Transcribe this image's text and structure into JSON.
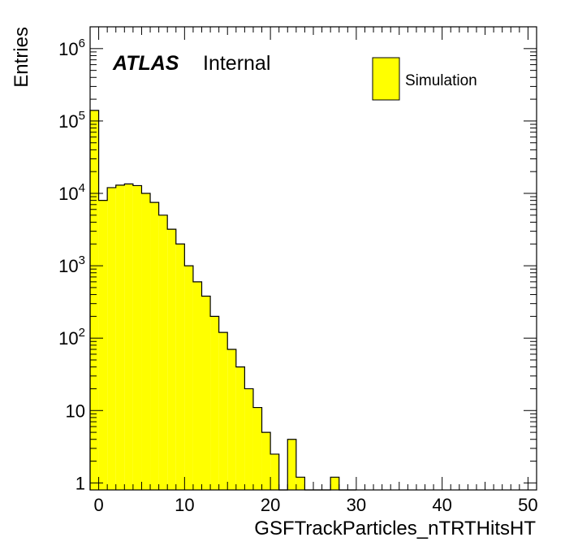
{
  "chart_data": {
    "type": "bar",
    "title": "",
    "xlabel": "GSFTrackParticles_nTRTHitsHT",
    "ylabel": "Entries",
    "xlim": [
      -1,
      51
    ],
    "ylim": [
      0.8,
      2000000
    ],
    "yscale": "log",
    "x_ticks": [
      0,
      10,
      20,
      30,
      40,
      50
    ],
    "y_ticks": [
      {
        "value": 1,
        "base": "1",
        "exp": ""
      },
      {
        "value": 10,
        "base": "10",
        "exp": ""
      },
      {
        "value": 100,
        "base": "10",
        "exp": "2"
      },
      {
        "value": 1000,
        "base": "10",
        "exp": "3"
      },
      {
        "value": 10000,
        "base": "10",
        "exp": "4"
      },
      {
        "value": 100000,
        "base": "10",
        "exp": "5"
      },
      {
        "value": 1000000,
        "base": "10",
        "exp": "6"
      }
    ],
    "bin_width": 1,
    "bin_low_edges": [
      -1,
      0,
      1,
      2,
      3,
      4,
      5,
      6,
      7,
      8,
      9,
      10,
      11,
      12,
      13,
      14,
      15,
      16,
      17,
      18,
      19,
      20,
      21,
      22,
      23,
      24,
      25,
      26,
      27,
      28,
      29
    ],
    "values": [
      140000,
      8000,
      12000,
      13000,
      13500,
      12800,
      10000,
      7500,
      5000,
      3200,
      2000,
      1000,
      600,
      380,
      200,
      120,
      70,
      40,
      20,
      11,
      5,
      2.5,
      0.5,
      4,
      1.2,
      0,
      0,
      0,
      1.2,
      0,
      0
    ],
    "series": [
      {
        "name": "Simulation",
        "color": "#ffff00"
      }
    ],
    "legend_position": "top-right",
    "grid": false
  },
  "labels": {
    "atlas": "ATLAS",
    "internal": "Internal",
    "legend_entry": "Simulation"
  },
  "colors": {
    "fill": "#ffff00",
    "line": "#000000"
  }
}
